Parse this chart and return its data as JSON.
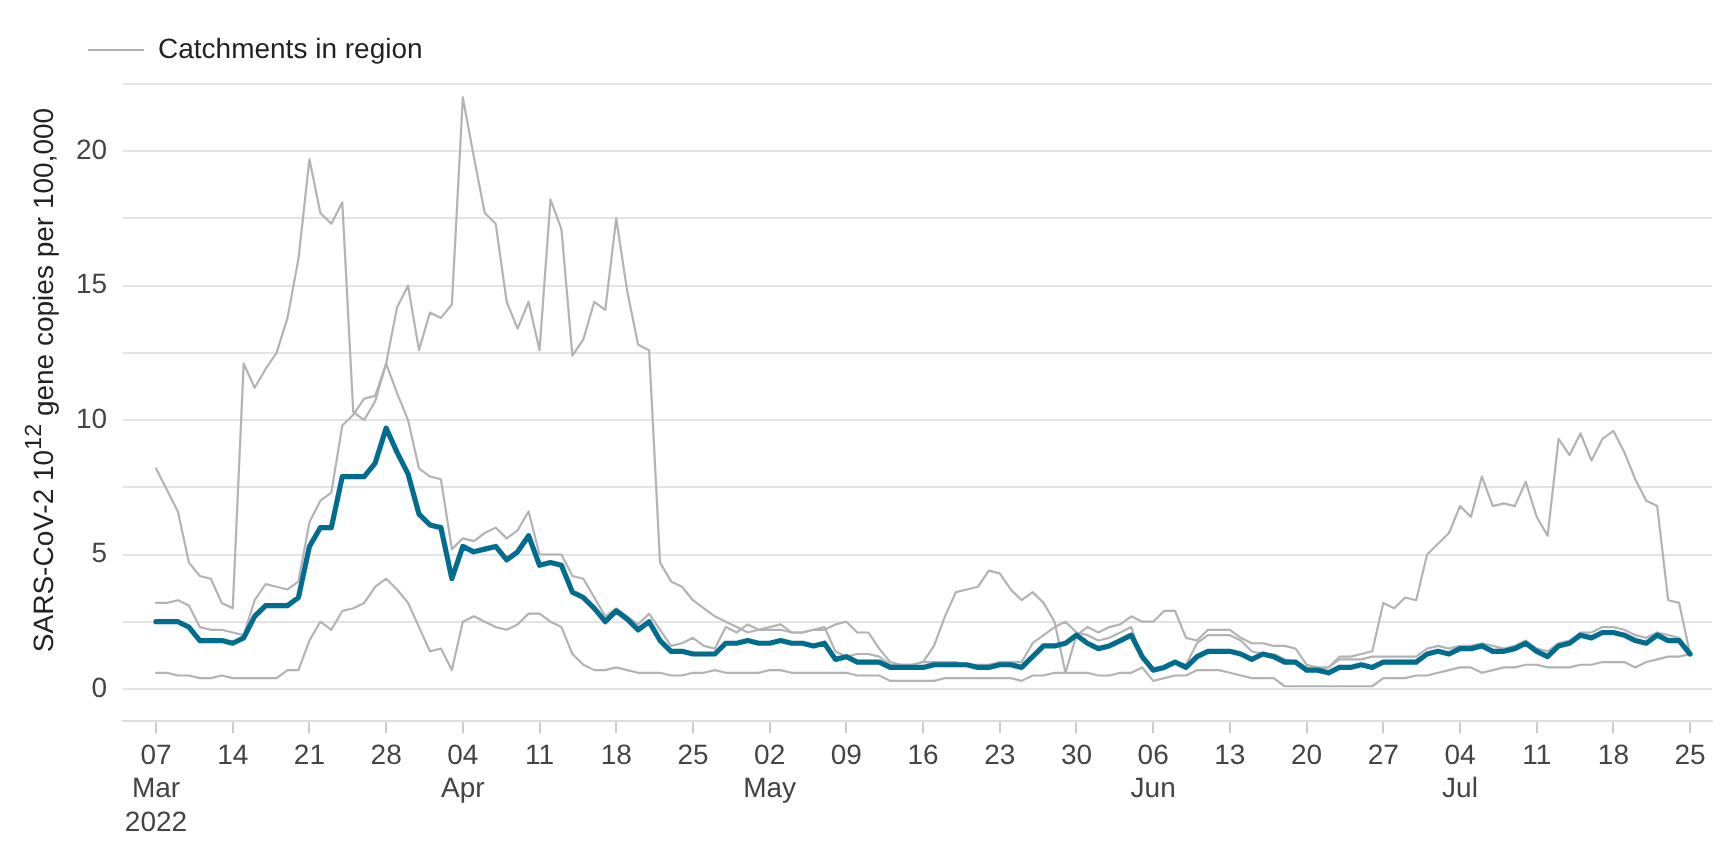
{
  "chart_data": {
    "type": "line",
    "ylabel": "SARS-CoV-2 10$^{12}$ gene copies per 100,000",
    "x": [
      "2022-03-07",
      "2022-03-08",
      "2022-03-09",
      "2022-03-10",
      "2022-03-11",
      "2022-03-12",
      "2022-03-13",
      "2022-03-14",
      "2022-03-15",
      "2022-03-16",
      "2022-03-17",
      "2022-03-18",
      "2022-03-19",
      "2022-03-20",
      "2022-03-21",
      "2022-03-22",
      "2022-03-23",
      "2022-03-24",
      "2022-03-25",
      "2022-03-26",
      "2022-03-27",
      "2022-03-28",
      "2022-03-29",
      "2022-03-30",
      "2022-03-31",
      "2022-04-01",
      "2022-04-02",
      "2022-04-03",
      "2022-04-04",
      "2022-04-05",
      "2022-04-06",
      "2022-04-07",
      "2022-04-08",
      "2022-04-09",
      "2022-04-10",
      "2022-04-11",
      "2022-04-12",
      "2022-04-13",
      "2022-04-14",
      "2022-04-15",
      "2022-04-16",
      "2022-04-17",
      "2022-04-18",
      "2022-04-19",
      "2022-04-20",
      "2022-04-21",
      "2022-04-22",
      "2022-04-23",
      "2022-04-24",
      "2022-04-25",
      "2022-04-26",
      "2022-04-27",
      "2022-04-28",
      "2022-04-29",
      "2022-04-30",
      "2022-05-01",
      "2022-05-02",
      "2022-05-03",
      "2022-05-04",
      "2022-05-05",
      "2022-05-06",
      "2022-05-07",
      "2022-05-08",
      "2022-05-09",
      "2022-05-10",
      "2022-05-11",
      "2022-05-12",
      "2022-05-13",
      "2022-05-14",
      "2022-05-15",
      "2022-05-16",
      "2022-05-17",
      "2022-05-18",
      "2022-05-19",
      "2022-05-20",
      "2022-05-21",
      "2022-05-22",
      "2022-05-23",
      "2022-05-24",
      "2022-05-25",
      "2022-05-26",
      "2022-05-27",
      "2022-05-28",
      "2022-05-29",
      "2022-05-30",
      "2022-05-31",
      "2022-06-01",
      "2022-06-02",
      "2022-06-03",
      "2022-06-04",
      "2022-06-05",
      "2022-06-06",
      "2022-06-07",
      "2022-06-08",
      "2022-06-09",
      "2022-06-10",
      "2022-06-11",
      "2022-06-12",
      "2022-06-13",
      "2022-06-14",
      "2022-06-15",
      "2022-06-16",
      "2022-06-17",
      "2022-06-18",
      "2022-06-19",
      "2022-06-20",
      "2022-06-21",
      "2022-06-22",
      "2022-06-23",
      "2022-06-24",
      "2022-06-25",
      "2022-06-26",
      "2022-06-27",
      "2022-06-28",
      "2022-06-29",
      "2022-06-30",
      "2022-07-01",
      "2022-07-02",
      "2022-07-03",
      "2022-07-04",
      "2022-07-05",
      "2022-07-06",
      "2022-07-07",
      "2022-07-08",
      "2022-07-09",
      "2022-07-10",
      "2022-07-11",
      "2022-07-12",
      "2022-07-13",
      "2022-07-14",
      "2022-07-15",
      "2022-07-16",
      "2022-07-17",
      "2022-07-18",
      "2022-07-19",
      "2022-07-20",
      "2022-07-21",
      "2022-07-22",
      "2022-07-23",
      "2022-07-24",
      "2022-07-25"
    ],
    "series": [
      {
        "name": "Catchments in region",
        "color": "#b3b3b3",
        "values": [
          8.2,
          7.4,
          6.6,
          4.7,
          4.2,
          4.1,
          3.2,
          3.0,
          12.1,
          11.2,
          11.9,
          12.5,
          13.8,
          16.0,
          19.7,
          17.7,
          17.3,
          18.1,
          10.3,
          10.0,
          10.7,
          12.1,
          14.2,
          15.0,
          12.6,
          14.0,
          13.8,
          14.3,
          22.0,
          19.8,
          17.7,
          17.3,
          14.4,
          13.4,
          14.4,
          12.6,
          18.2,
          17.1,
          12.4,
          13.0,
          14.4,
          14.1,
          17.5,
          14.8,
          12.8,
          12.6,
          4.7,
          4.0,
          3.8,
          3.3,
          3.0,
          2.7,
          2.5,
          2.3,
          2.1,
          2.2,
          2.2,
          2.2,
          2.1,
          2.1,
          2.2,
          2.2,
          2.4,
          2.5,
          2.1,
          2.1,
          1.5,
          1.0,
          0.9,
          0.9,
          1.0,
          1.6,
          2.7,
          3.6,
          3.7,
          3.8,
          4.4,
          4.3,
          3.7,
          3.3,
          3.6,
          3.2,
          2.5,
          0.6,
          2.0,
          2.3,
          2.1,
          2.3,
          2.4,
          2.7,
          2.5,
          2.5,
          2.9,
          2.9,
          1.9,
          1.8,
          2.2,
          2.2,
          2.2,
          1.9,
          1.7,
          1.7,
          1.6,
          1.6,
          1.5,
          0.9,
          0.8,
          0.8,
          1.2,
          1.2,
          1.3,
          1.4,
          3.2,
          3.0,
          3.4,
          3.3,
          5.0,
          5.4,
          5.8,
          6.8,
          6.4,
          7.9,
          6.8,
          6.9,
          6.8,
          7.7,
          6.4,
          5.7,
          9.3,
          8.7,
          9.5,
          8.5,
          9.3,
          9.6,
          8.8,
          7.8,
          7.0,
          6.8,
          3.3,
          3.2,
          1.3
        ]
      },
      {
        "color": "#b3b3b3",
        "values": [
          3.2,
          3.2,
          3.3,
          3.1,
          2.3,
          2.2,
          2.2,
          2.1,
          2.0,
          3.3,
          3.9,
          3.8,
          3.7,
          4.0,
          6.2,
          7.0,
          7.3,
          9.8,
          10.2,
          10.8,
          10.9,
          12.1,
          11.0,
          10.0,
          8.2,
          7.9,
          7.8,
          5.2,
          5.6,
          5.5,
          5.8,
          6.0,
          5.6,
          5.9,
          6.6,
          5.0,
          5.0,
          5.0,
          4.2,
          4.1,
          3.4,
          2.7,
          3.0,
          2.7,
          2.4,
          2.8,
          2.2,
          1.6,
          1.7,
          1.9,
          1.6,
          1.5,
          2.3,
          2.1,
          2.4,
          2.2,
          2.3,
          2.4,
          2.1,
          2.1,
          2.2,
          2.3,
          1.4,
          1.2,
          1.3,
          1.3,
          1.2,
          0.9,
          0.9,
          0.9,
          1.0,
          1.0,
          1.0,
          1.0,
          0.9,
          0.9,
          0.9,
          1.0,
          1.0,
          1.0,
          1.7,
          2.0,
          2.3,
          2.5,
          2.1,
          2.0,
          1.8,
          1.9,
          2.1,
          2.3,
          1.1,
          0.7,
          0.8,
          1.0,
          0.9,
          1.7,
          2.0,
          2.0,
          2.0,
          1.8,
          1.4,
          1.3,
          1.3,
          1.1,
          1.0,
          0.8,
          0.7,
          0.8,
          1.1,
          1.1,
          1.1,
          1.2,
          1.2,
          1.2,
          1.2,
          1.2,
          1.5,
          1.6,
          1.5,
          1.6,
          1.6,
          1.7,
          1.6,
          1.5,
          1.6,
          1.8,
          1.5,
          1.4,
          1.7,
          1.8,
          2.1,
          2.1,
          2.3,
          2.3,
          2.2,
          2.0,
          1.9,
          2.1,
          2.0,
          1.9,
          1.3
        ]
      },
      {
        "color": "#b3b3b3",
        "values": [
          0.6,
          0.6,
          0.5,
          0.5,
          0.4,
          0.4,
          0.5,
          0.4,
          0.4,
          0.4,
          0.4,
          0.4,
          0.7,
          0.7,
          1.8,
          2.5,
          2.2,
          2.9,
          3.0,
          3.2,
          3.8,
          4.1,
          3.7,
          3.2,
          2.3,
          1.4,
          1.5,
          0.7,
          2.5,
          2.7,
          2.5,
          2.3,
          2.2,
          2.4,
          2.8,
          2.8,
          2.5,
          2.3,
          1.3,
          0.9,
          0.7,
          0.7,
          0.8,
          0.7,
          0.6,
          0.6,
          0.6,
          0.5,
          0.5,
          0.6,
          0.6,
          0.7,
          0.6,
          0.6,
          0.6,
          0.6,
          0.7,
          0.7,
          0.6,
          0.6,
          0.6,
          0.6,
          0.6,
          0.6,
          0.5,
          0.5,
          0.5,
          0.3,
          0.3,
          0.3,
          0.3,
          0.3,
          0.4,
          0.4,
          0.4,
          0.4,
          0.4,
          0.4,
          0.4,
          0.3,
          0.5,
          0.5,
          0.6,
          0.6,
          0.6,
          0.6,
          0.5,
          0.5,
          0.6,
          0.6,
          0.8,
          0.3,
          0.4,
          0.5,
          0.5,
          0.7,
          0.7,
          0.7,
          0.6,
          0.5,
          0.4,
          0.4,
          0.4,
          0.1,
          0.1,
          0.1,
          0.1,
          0.1,
          0.1,
          0.1,
          0.1,
          0.1,
          0.4,
          0.4,
          0.4,
          0.5,
          0.5,
          0.6,
          0.7,
          0.8,
          0.8,
          0.6,
          0.7,
          0.8,
          0.8,
          0.9,
          0.9,
          0.8,
          0.8,
          0.8,
          0.9,
          0.9,
          1.0,
          1.0,
          1.0,
          0.8,
          1.0,
          1.1,
          1.2,
          1.2,
          1.3
        ]
      },
      {
        "color": "#006c8e",
        "values": [
          2.5,
          2.5,
          2.5,
          2.3,
          1.8,
          1.8,
          1.8,
          1.7,
          1.9,
          2.7,
          3.1,
          3.1,
          3.1,
          3.4,
          5.3,
          6.0,
          6.0,
          7.9,
          7.9,
          7.9,
          8.4,
          9.7,
          8.8,
          8.0,
          6.5,
          6.1,
          6.0,
          4.1,
          5.3,
          5.1,
          5.2,
          5.3,
          4.8,
          5.1,
          5.7,
          4.6,
          4.7,
          4.6,
          3.6,
          3.4,
          3.0,
          2.5,
          2.9,
          2.6,
          2.2,
          2.5,
          1.8,
          1.4,
          1.4,
          1.3,
          1.3,
          1.3,
          1.7,
          1.7,
          1.8,
          1.7,
          1.7,
          1.8,
          1.7,
          1.7,
          1.6,
          1.7,
          1.1,
          1.2,
          1.0,
          1.0,
          1.0,
          0.8,
          0.8,
          0.8,
          0.8,
          0.9,
          0.9,
          0.9,
          0.9,
          0.8,
          0.8,
          0.9,
          0.9,
          0.8,
          1.2,
          1.6,
          1.6,
          1.7,
          2.0,
          1.7,
          1.5,
          1.6,
          1.8,
          2.0,
          1.2,
          0.7,
          0.8,
          1.0,
          0.8,
          1.2,
          1.4,
          1.4,
          1.4,
          1.3,
          1.1,
          1.3,
          1.2,
          1.0,
          1.0,
          0.7,
          0.7,
          0.6,
          0.8,
          0.8,
          0.9,
          0.8,
          1.0,
          1.0,
          1.0,
          1.0,
          1.3,
          1.4,
          1.3,
          1.5,
          1.5,
          1.6,
          1.4,
          1.4,
          1.5,
          1.7,
          1.4,
          1.2,
          1.6,
          1.7,
          2.0,
          1.9,
          2.1,
          2.1,
          2.0,
          1.8,
          1.7,
          2.0,
          1.8,
          1.8,
          1.3
        ]
      }
    ],
    "xlim": [
      "2022-03-04",
      "2022-07-27"
    ],
    "xticks": [
      {
        "value": "2022-03-07",
        "label": "07\nMar\n2022"
      },
      {
        "value": "2022-03-14",
        "label": "14"
      },
      {
        "value": "2022-03-21",
        "label": "21"
      },
      {
        "value": "2022-03-28",
        "label": "28"
      },
      {
        "value": "2022-04-04",
        "label": "04\nApr"
      },
      {
        "value": "2022-04-11",
        "label": "11"
      },
      {
        "value": "2022-04-18",
        "label": "18"
      },
      {
        "value": "2022-04-25",
        "label": "25"
      },
      {
        "value": "2022-05-02",
        "label": "02\nMay"
      },
      {
        "value": "2022-05-09",
        "label": "09"
      },
      {
        "value": "2022-05-16",
        "label": "16"
      },
      {
        "value": "2022-05-23",
        "label": "23"
      },
      {
        "value": "2022-05-30",
        "label": "30"
      },
      {
        "value": "2022-06-06",
        "label": "06\nJun"
      },
      {
        "value": "2022-06-13",
        "label": "13"
      },
      {
        "value": "2022-06-20",
        "label": "20"
      },
      {
        "value": "2022-06-27",
        "label": "27"
      },
      {
        "value": "2022-07-04",
        "label": "04\nJul"
      },
      {
        "value": "2022-07-11",
        "label": "11"
      },
      {
        "value": "2022-07-18",
        "label": "18"
      },
      {
        "value": "2022-07-25",
        "label": "25"
      }
    ],
    "ylim": [
      -1.2,
      22.5
    ],
    "yticks": [
      0,
      {
        "value": 2.5,
        "label": null
      },
      5,
      {
        "value": 7.5,
        "label": null
      },
      10,
      {
        "value": 12.5,
        "label": null
      },
      15,
      {
        "value": 17.5,
        "label": null
      },
      20,
      {
        "value": 22.5,
        "label": null
      }
    ],
    "grid": "y",
    "legend": "top left",
    "marker": "none",
    "line_style": "solid"
  }
}
